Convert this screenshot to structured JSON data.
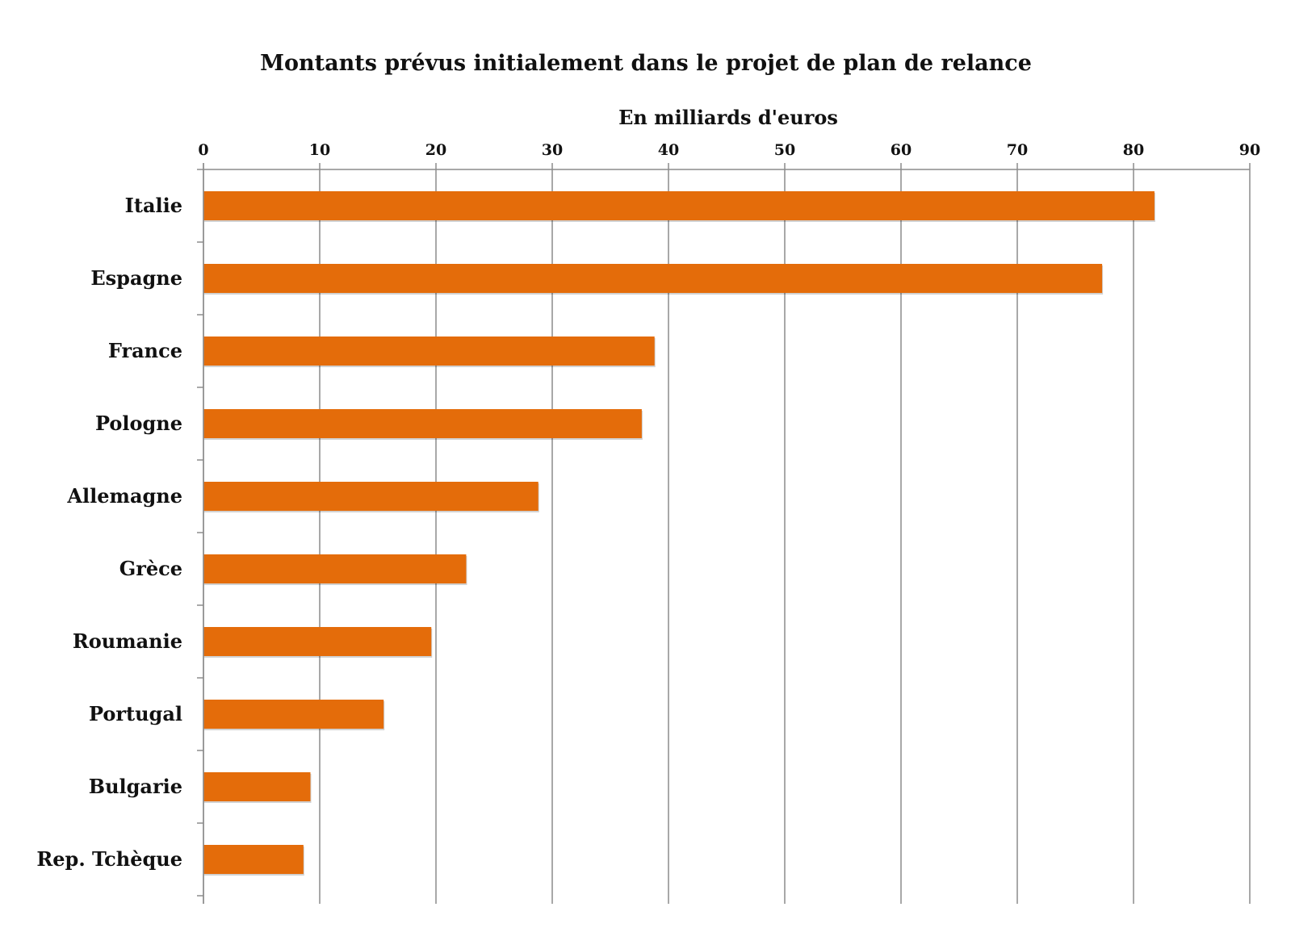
{
  "chart_data": {
    "type": "bar",
    "orientation": "horizontal",
    "title": "Montants prévus initialement dans le projet de plan de relance",
    "xlabel": "En milliards d'euros",
    "ylabel": "",
    "xlim": [
      0,
      90
    ],
    "ticks": [
      0,
      10,
      20,
      30,
      40,
      50,
      60,
      70,
      80,
      90
    ],
    "tick_labels": [
      "0",
      "10",
      "20",
      "30",
      "40",
      "50",
      "60",
      "70",
      "80",
      "90"
    ],
    "categories": [
      "Italie",
      "Espagne",
      "France",
      "Pologne",
      "Allemagne",
      "Grèce",
      "Roumanie",
      "Portugal",
      "Bulgarie",
      "Rep. Tchèque"
    ],
    "values": [
      81.8,
      77.3,
      38.8,
      37.7,
      28.8,
      22.6,
      19.6,
      15.5,
      9.2,
      8.6
    ],
    "bar_color": "#e46c0a",
    "grid": true,
    "legend": "none"
  }
}
